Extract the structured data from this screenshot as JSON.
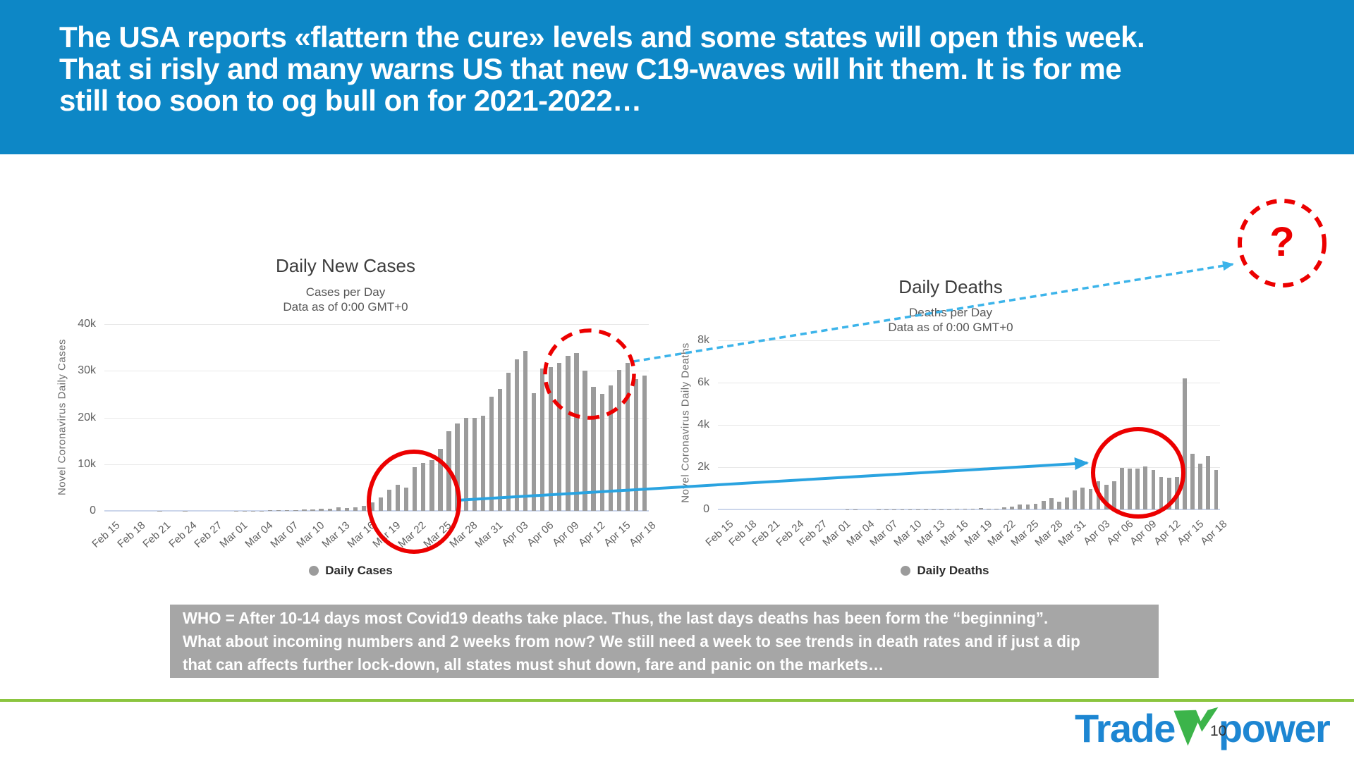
{
  "header": {
    "bg_color": "#0d87c6",
    "lines": [
      "The USA reports «flattern the cure» levels and some states will open this week.",
      "That si risly and many warns US that new C19-waves will hit them. It is for me",
      "still too soon to og bull on for 2021-2022…"
    ]
  },
  "chart_data": [
    {
      "type": "bar",
      "title": "Daily New Cases",
      "subtitle": "Cases per Day\nData as of 0:00 GMT+0",
      "ylabel": "Novel Coronavirus Daily Cases",
      "legend": "Daily Cases",
      "bar_color": "#9b9b9b",
      "y_max": 40000,
      "y_ticks": [
        "40k",
        "30k",
        "20k",
        "10k",
        "0"
      ],
      "y_tick_values": [
        40000,
        30000,
        20000,
        10000,
        0
      ],
      "x_tick_labels": [
        "Feb 15",
        "Feb 18",
        "Feb 21",
        "Feb 24",
        "Feb 27",
        "Mar 01",
        "Mar 04",
        "Mar 07",
        "Mar 10",
        "Mar 13",
        "Mar 16",
        "Mar 19",
        "Mar 22",
        "Mar 25",
        "Mar 28",
        "Mar 31",
        "Apr 03",
        "Apr 06",
        "Apr 09",
        "Apr 12",
        "Apr 15",
        "Apr 18"
      ],
      "x_tick_step": 3,
      "categories_note": "daily bars Feb 15 - Apr 18 2020",
      "values": [
        0,
        0,
        0,
        0,
        0,
        0,
        20,
        0,
        0,
        20,
        0,
        0,
        0,
        0,
        10,
        20,
        20,
        30,
        40,
        80,
        110,
        120,
        160,
        240,
        290,
        400,
        420,
        740,
        630,
        770,
        1010,
        1750,
        2850,
        4530,
        5660,
        5040,
        9290,
        10280,
        10900,
        13240,
        17060,
        18700,
        19980,
        19870,
        20400,
        24470,
        26170,
        29660,
        32380,
        34270,
        25200,
        30520,
        30830,
        31750,
        33260,
        33780,
        30000,
        26640,
        25100,
        26850,
        30150,
        31670,
        28190,
        29050
      ]
    },
    {
      "type": "bar",
      "title": "Daily Deaths",
      "subtitle": "Deaths per Day\nData as of 0:00 GMT+0",
      "ylabel": "Novel Coronavirus Daily Deaths",
      "legend": "Daily Deaths",
      "bar_color": "#9b9b9b",
      "y_max": 8000,
      "y_ticks": [
        "8k",
        "6k",
        "4k",
        "2k",
        "0"
      ],
      "y_tick_values": [
        8000,
        6000,
        4000,
        2000,
        0
      ],
      "x_tick_labels": [
        "Feb 15",
        "Feb 18",
        "Feb 21",
        "Feb 24",
        "Feb 27",
        "Mar 01",
        "Mar 04",
        "Mar 07",
        "Mar 10",
        "Mar 13",
        "Mar 16",
        "Mar 19",
        "Mar 22",
        "Mar 25",
        "Mar 28",
        "Mar 31",
        "Apr 03",
        "Apr 06",
        "Apr 09",
        "Apr 12",
        "Apr 15",
        "Apr 18"
      ],
      "x_tick_step": 3,
      "categories_note": "daily bars Feb 15 - Apr 18 2020",
      "values": [
        0,
        0,
        0,
        0,
        0,
        0,
        0,
        0,
        0,
        0,
        0,
        0,
        0,
        0,
        1,
        1,
        4,
        3,
        2,
        1,
        3,
        4,
        3,
        4,
        4,
        8,
        3,
        11,
        10,
        11,
        18,
        23,
        41,
        57,
        49,
        46,
        111,
        140,
        225,
        247,
        268,
        411,
        525,
        363,
        573,
        912,
        1049,
        968,
        1321,
        1165,
        1342,
        1972,
        1940,
        1922,
        2035,
        1857,
        1520,
        1500,
        1535,
        6185,
        2618,
        2176,
        2535,
        1867
      ]
    }
  ],
  "charts_meta": {
    "left_subtitle_line1": "Cases per Day",
    "left_subtitle_line2": "Data as of 0:00 GMT+0",
    "right_subtitle_line1": "Deaths per Day",
    "right_subtitle_line2": "Data as of 0:00 GMT+0"
  },
  "annotations": {
    "question_mark": "?",
    "red_color": "#ec0000",
    "arrow_solid_color": "#2aa3e0",
    "arrow_dashed_color": "#3cb4ea"
  },
  "note_box": {
    "bg_color": "#a6a6a6",
    "lines": [
      "WHO = After 10-14 days most Covid19 deaths take place. Thus, the last days deaths has been form the “beginning”.",
      "What about incoming numbers and 2 weeks from now? We still need a week to see trends in death rates and if just a dip",
      "that can affects further lock-down, all states must shut down, fare and panic on the markets…"
    ]
  },
  "footer": {
    "line_color": "#8bc53f",
    "page_number": "10",
    "logo": {
      "part1": "Trade",
      "w_letter": "W",
      "part2": "power",
      "blue": "#1d86d2",
      "green": "#3cb44a"
    }
  }
}
